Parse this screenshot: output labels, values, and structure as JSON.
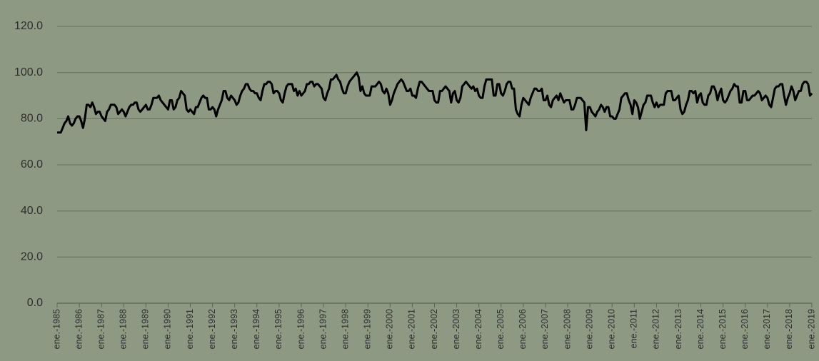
{
  "chart_data": {
    "type": "line",
    "color": "#000000",
    "grid": true,
    "ylim": [
      0,
      120
    ],
    "yticks": [
      {
        "value": 0,
        "label": "0.0"
      },
      {
        "value": 20,
        "label": "20.0"
      },
      {
        "value": 40,
        "label": "40.0"
      },
      {
        "value": 60,
        "label": "60.0"
      },
      {
        "value": 80,
        "label": "80.0"
      },
      {
        "value": 100,
        "label": "100.0"
      },
      {
        "value": 120,
        "label": "120.0"
      }
    ],
    "categories": [
      "ene.-1985",
      null,
      null,
      null,
      null,
      null,
      null,
      null,
      null,
      null,
      null,
      null,
      "ene.-1986",
      null,
      null,
      null,
      null,
      null,
      null,
      null,
      null,
      null,
      null,
      null,
      "ene.-1987",
      null,
      null,
      null,
      null,
      null,
      null,
      null,
      null,
      null,
      null,
      null,
      "ene.-1988",
      null,
      null,
      null,
      null,
      null,
      null,
      null,
      null,
      null,
      null,
      null,
      "ene.-1989",
      null,
      null,
      null,
      null,
      null,
      null,
      null,
      null,
      null,
      null,
      null,
      "ene.-1990",
      null,
      null,
      null,
      null,
      null,
      null,
      null,
      null,
      null,
      null,
      null,
      "ene.-1991",
      null,
      null,
      null,
      null,
      null,
      null,
      null,
      null,
      null,
      null,
      null,
      "ene.-1992",
      null,
      null,
      null,
      null,
      null,
      null,
      null,
      null,
      null,
      null,
      null,
      "ene.-1993",
      null,
      null,
      null,
      null,
      null,
      null,
      null,
      null,
      null,
      null,
      null,
      "ene.-1994",
      null,
      null,
      null,
      null,
      null,
      null,
      null,
      null,
      null,
      null,
      null,
      "ene.-1995",
      null,
      null,
      null,
      null,
      null,
      null,
      null,
      null,
      null,
      null,
      null,
      "ene.-1996",
      null,
      null,
      null,
      null,
      null,
      null,
      null,
      null,
      null,
      null,
      null,
      "ene.-1997",
      null,
      null,
      null,
      null,
      null,
      null,
      null,
      null,
      null,
      null,
      null,
      "ene.-1998",
      null,
      null,
      null,
      null,
      null,
      null,
      null,
      null,
      null,
      null,
      null,
      "ene.-1999",
      null,
      null,
      null,
      null,
      null,
      null,
      null,
      null,
      null,
      null,
      null,
      "ene.-2000",
      null,
      null,
      null,
      null,
      null,
      null,
      null,
      null,
      null,
      null,
      null,
      "ene.-2001",
      null,
      null,
      null,
      null,
      null,
      null,
      null,
      null,
      null,
      null,
      null,
      "ene.-2002",
      null,
      null,
      null,
      null,
      null,
      null,
      null,
      null,
      null,
      null,
      null,
      "ene.-2003",
      null,
      null,
      null,
      null,
      null,
      null,
      null,
      null,
      null,
      null,
      null,
      "ene.-2004",
      null,
      null,
      null,
      null,
      null,
      null,
      null,
      null,
      null,
      null,
      null,
      "ene.-2005",
      null,
      null,
      null,
      null,
      null,
      null,
      null,
      null,
      null,
      null,
      null,
      "ene.-2006",
      null,
      null,
      null,
      null,
      null,
      null,
      null,
      null,
      null,
      null,
      null,
      "ene.-2007",
      null,
      null,
      null,
      null,
      null,
      null,
      null,
      null,
      null,
      null,
      null,
      "ene.-2008",
      null,
      null,
      null,
      null,
      null,
      null,
      null,
      null,
      null,
      null,
      null,
      "ene.-2009",
      null,
      null,
      null,
      null,
      null,
      null,
      null,
      null,
      null,
      null,
      null,
      "ene.-2010",
      null,
      null,
      null,
      null,
      null,
      null,
      null,
      null,
      null,
      null,
      null,
      "ene.-2011",
      null,
      null,
      null,
      null,
      null,
      null,
      null,
      null,
      null,
      null,
      null,
      "ene.-2012",
      null,
      null,
      null,
      null,
      null,
      null,
      null,
      null,
      null,
      null,
      null,
      "ene.-2013",
      null,
      null,
      null,
      null,
      null,
      null,
      null,
      null,
      null,
      null,
      null,
      "ene.-2014",
      null,
      null,
      null,
      null,
      null,
      null,
      null,
      null,
      null,
      null,
      null,
      "ene.-2015",
      null,
      null,
      null,
      null,
      null,
      null,
      null,
      null,
      null,
      null,
      null,
      "ene.-2016",
      null,
      null,
      null,
      null,
      null,
      null,
      null,
      null,
      null,
      null,
      null,
      "ene.-2017",
      null,
      null,
      null,
      null,
      null,
      null,
      null,
      null,
      null,
      null,
      null,
      "ene.-2018",
      null,
      null,
      null,
      null,
      null,
      null,
      null,
      null,
      null,
      null,
      null,
      "ene.-2019"
    ],
    "values": [
      74,
      74,
      74,
      76,
      78,
      79,
      81,
      78,
      77,
      78,
      80,
      81,
      81,
      79,
      76,
      80,
      86,
      86,
      85,
      87,
      85,
      82,
      83,
      83,
      81,
      80,
      79,
      83,
      84,
      86,
      86,
      86,
      85,
      82,
      83,
      84,
      83,
      81,
      83,
      85,
      86,
      86,
      87,
      87,
      84,
      83,
      84,
      85,
      86,
      84,
      84,
      86,
      89,
      89,
      89,
      90,
      88,
      87,
      86,
      85,
      84,
      88,
      88,
      84,
      85,
      88,
      89,
      92,
      91,
      90,
      84,
      83,
      84,
      83,
      82,
      85,
      85,
      87,
      89,
      90,
      89,
      89,
      84,
      84,
      85,
      84,
      81,
      84,
      86,
      88,
      92,
      92,
      89,
      88,
      90,
      89,
      88,
      86,
      87,
      90,
      92,
      93,
      95,
      95,
      93,
      92,
      92,
      91,
      91,
      89,
      88,
      92,
      95,
      95,
      96,
      96,
      95,
      91,
      92,
      92,
      91,
      88,
      87,
      91,
      94,
      95,
      95,
      95,
      92,
      93,
      90,
      92,
      90,
      91,
      92,
      95,
      95,
      96,
      96,
      94,
      95,
      95,
      94,
      93,
      89,
      88,
      91,
      93,
      97,
      97,
      98,
      99,
      97,
      96,
      93,
      91,
      91,
      94,
      96,
      97,
      98,
      99,
      100,
      98,
      92,
      94,
      91,
      90,
      90,
      90,
      94,
      94,
      94,
      95,
      96,
      95,
      92,
      91,
      93,
      91,
      86,
      88,
      91,
      93,
      95,
      96,
      97,
      96,
      94,
      92,
      92,
      93,
      90,
      90,
      89,
      93,
      96,
      96,
      95,
      94,
      93,
      92,
      92,
      92,
      88,
      87,
      87,
      92,
      92,
      93,
      94,
      93,
      92,
      87,
      91,
      92,
      88,
      87,
      89,
      94,
      95,
      96,
      95,
      94,
      93,
      94,
      92,
      93,
      90,
      89,
      89,
      94,
      97,
      97,
      97,
      97,
      90,
      90,
      95,
      95,
      91,
      90,
      92,
      95,
      96,
      96,
      93,
      93,
      84,
      82,
      81,
      86,
      89,
      88,
      87,
      86,
      89,
      91,
      93,
      93,
      92,
      92,
      93,
      88,
      88,
      90,
      86,
      85,
      88,
      89,
      90,
      88,
      91,
      89,
      87,
      88,
      88,
      88,
      84,
      84,
      86,
      89,
      89,
      89,
      88,
      87,
      75,
      85,
      85,
      83,
      82,
      81,
      83,
      84,
      86,
      85,
      83,
      85,
      85,
      81,
      81,
      80,
      80,
      82,
      84,
      89,
      90,
      91,
      91,
      88,
      86,
      82,
      88,
      87,
      85,
      80,
      83,
      86,
      87,
      90,
      90,
      90,
      87,
      85,
      87,
      85,
      86,
      86,
      86,
      91,
      92,
      92,
      92,
      88,
      88,
      89,
      90,
      84,
      82,
      83,
      86,
      88,
      92,
      92,
      91,
      92,
      87,
      90,
      91,
      87,
      86,
      86,
      90,
      91,
      94,
      94,
      92,
      88,
      91,
      93,
      88,
      87,
      88,
      90,
      92,
      93,
      95,
      94,
      94,
      87,
      87,
      92,
      92,
      88,
      88,
      89,
      90,
      90,
      91,
      92,
      91,
      88,
      89,
      90,
      89,
      86,
      85,
      89,
      93,
      94,
      94,
      95,
      95,
      90,
      86,
      89,
      91,
      94,
      92,
      88,
      90,
      92,
      92,
      95,
      96,
      96,
      95,
      90,
      91
    ]
  }
}
